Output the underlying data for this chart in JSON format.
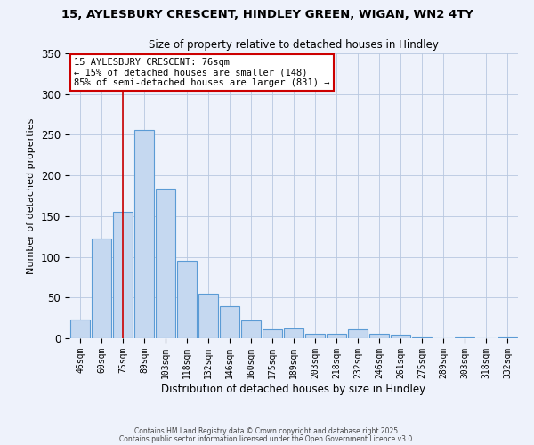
{
  "title_line1": "15, AYLESBURY CRESCENT, HINDLEY GREEN, WIGAN, WN2 4TY",
  "title_line2": "Size of property relative to detached houses in Hindley",
  "xlabel": "Distribution of detached houses by size in Hindley",
  "ylabel": "Number of detached properties",
  "bar_labels": [
    "46sqm",
    "60sqm",
    "75sqm",
    "89sqm",
    "103sqm",
    "118sqm",
    "132sqm",
    "146sqm",
    "160sqm",
    "175sqm",
    "189sqm",
    "203sqm",
    "218sqm",
    "232sqm",
    "246sqm",
    "261sqm",
    "275sqm",
    "289sqm",
    "303sqm",
    "318sqm",
    "332sqm"
  ],
  "bar_values": [
    23,
    123,
    155,
    256,
    184,
    95,
    55,
    39,
    22,
    11,
    12,
    5,
    6,
    11,
    5,
    4,
    1,
    0,
    1,
    0,
    1
  ],
  "bar_color": "#c5d8f0",
  "bar_edge_color": "#5b9bd5",
  "vline_x_idx": 2,
  "vline_color": "#cc0000",
  "annotation_title": "15 AYLESBURY CRESCENT: 76sqm",
  "annotation_line2": "← 15% of detached houses are smaller (148)",
  "annotation_line3": "85% of semi-detached houses are larger (831) →",
  "annotation_box_color": "#ffffff",
  "annotation_box_edge": "#cc0000",
  "ylim": [
    0,
    350
  ],
  "background_color": "#eef2fb",
  "footer1": "Contains HM Land Registry data © Crown copyright and database right 2025.",
  "footer2": "Contains public sector information licensed under the Open Government Licence v3.0."
}
